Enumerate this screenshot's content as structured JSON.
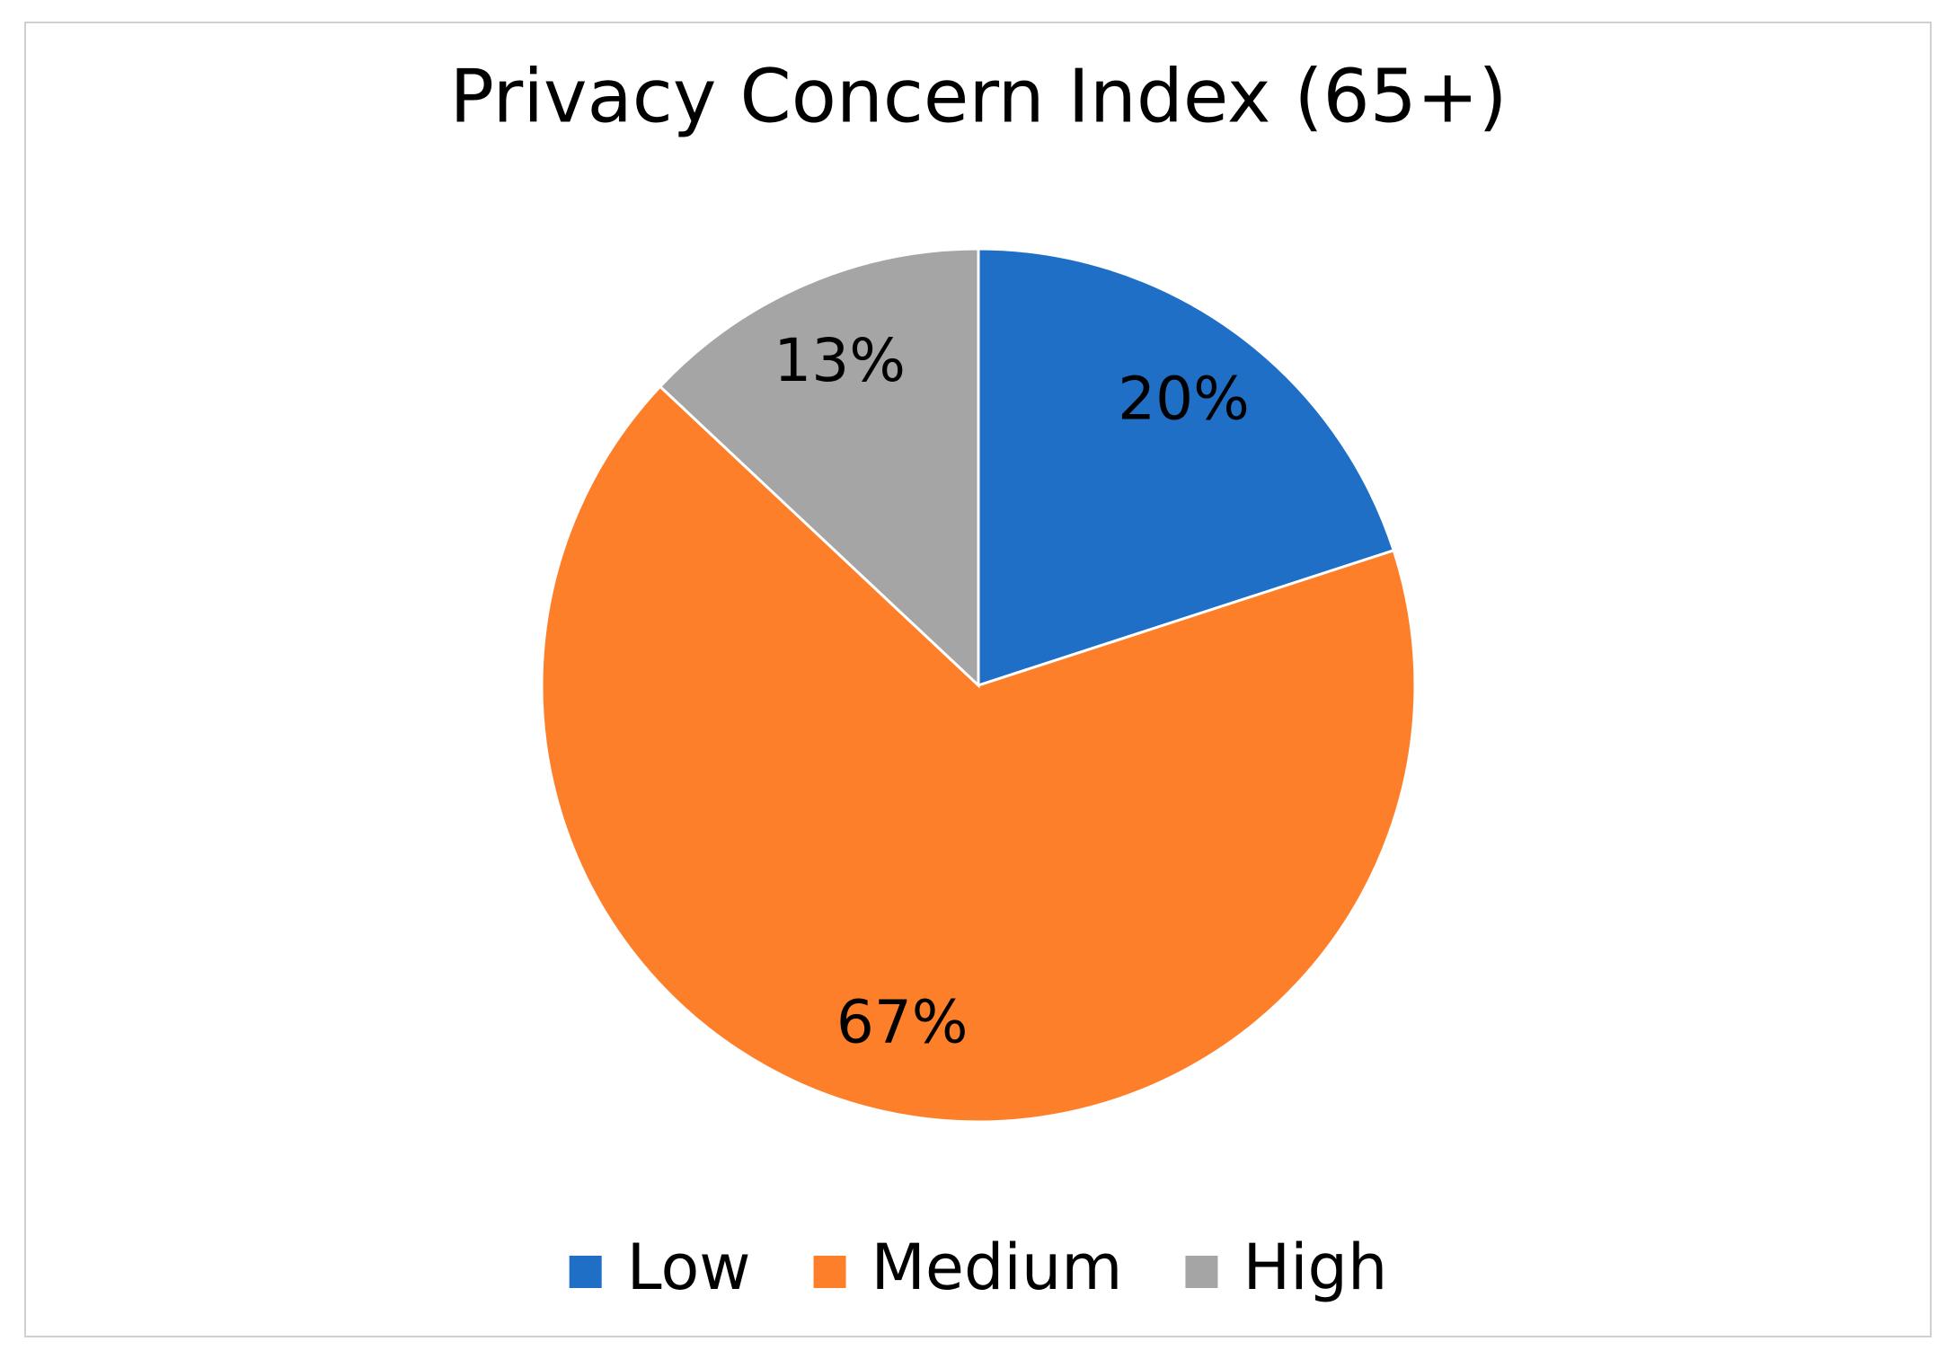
{
  "chart_data": {
    "type": "pie",
    "title": "Privacy Concern Index (65+)",
    "categories": [
      "Low",
      "Medium",
      "High"
    ],
    "values": [
      20,
      67,
      13
    ],
    "value_labels": [
      "20%",
      "67%",
      "13%"
    ],
    "colors": [
      "#1f6fc6",
      "#fe7f2a",
      "#a5a5a5"
    ],
    "legend": "bottom"
  }
}
